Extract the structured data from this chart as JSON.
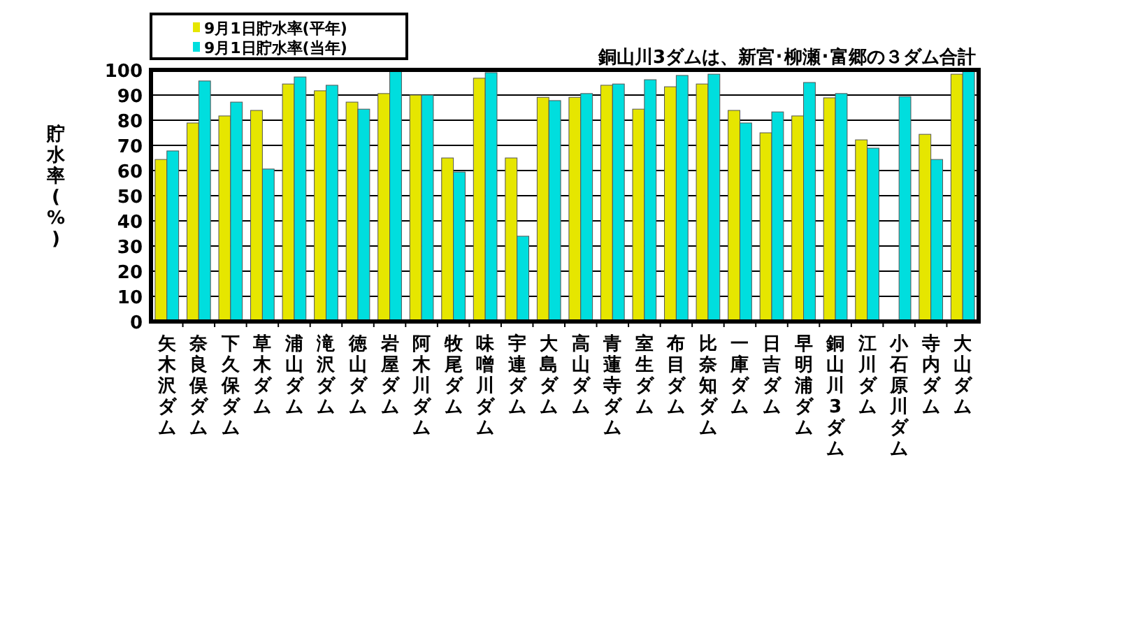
{
  "chart_data": {
    "type": "bar",
    "ylabel": "貯水率(%)",
    "annotations": [
      "銅山川3ダムは、新宮･柳瀬･富郷の３ダム合計"
    ],
    "categories": [
      "矢木沢ダム",
      "奈良俣ダム",
      "下久保ダム",
      "草木ダム",
      "浦山ダム",
      "滝沢ダム",
      "徳山ダム",
      "岩屋ダム",
      "阿木川ダム",
      "牧尾ダム",
      "味噌川ダム",
      "宇連ダム",
      "大島ダム",
      "高山ダム",
      "青蓮寺ダム",
      "室生ダム",
      "布目ダム",
      "比奈知ダム",
      "一庫ダム",
      "日吉ダム",
      "早明浦ダム",
      "銅山川3ダム",
      "江川ダム",
      "小石原川ダム",
      "寺内ダム",
      "大山ダム"
    ],
    "series": [
      {
        "name": "9月1日貯水率(平年)",
        "color": "#e6e600",
        "values": [
          64.4,
          78.9,
          81.7,
          83.9,
          94.4,
          91.7,
          87.2,
          90.6,
          90,
          65,
          96.7,
          65,
          89.1,
          89.1,
          93.9,
          84.4,
          93.3,
          94.4,
          83.9,
          75,
          81.7,
          88.9,
          72.2,
          null,
          74.4,
          98.3
        ]
      },
      {
        "name": "9月1日貯水率(当年)",
        "color": "#00dede",
        "values": [
          67.8,
          95.6,
          87.2,
          60.6,
          97.2,
          93.9,
          84.4,
          100,
          90,
          59.4,
          98.9,
          33.9,
          87.8,
          90.6,
          94.4,
          96.1,
          97.8,
          98.3,
          78.9,
          83.3,
          95,
          90.6,
          68.9,
          89.4,
          64.4,
          100
        ]
      }
    ],
    "ylim": [
      0,
      100
    ],
    "yticks": [
      0,
      10,
      20,
      30,
      40,
      50,
      60,
      70,
      80,
      90,
      100
    ],
    "grid": "y",
    "legend": "top left"
  }
}
